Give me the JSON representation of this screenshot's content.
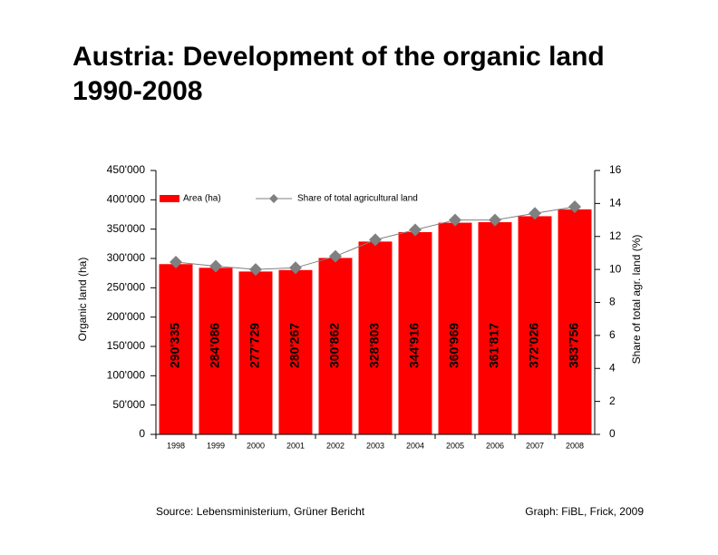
{
  "chart_data": {
    "type": "bar",
    "title": "Austria: Development of the organic land 1990-2008",
    "y_label": "Organic land (ha)",
    "y2_label": "Share of total agr. land (%)",
    "source": "Source: Lebensministerium, Grüner Bericht",
    "credit": "Graph:  FiBL, Frick, 2009",
    "categories": [
      "1998",
      "1999",
      "2000",
      "2001",
      "2002",
      "2003",
      "2004",
      "2005",
      "2006",
      "2007",
      "2008"
    ],
    "series": [
      {
        "name": "Area (ha)",
        "color": "#ff0000",
        "values": [
          290335,
          284086,
          277729,
          280267,
          300862,
          328803,
          344916,
          360969,
          361817,
          372026,
          383756
        ],
        "value_labels": [
          "290'335",
          "284'086",
          "277'729",
          "280'267",
          "300'862",
          "328'803",
          "344'916",
          "360'969",
          "361'817",
          "372'026",
          "383'756"
        ]
      },
      {
        "name": "Share of total agricultural land",
        "color": "#808080",
        "axis": "y2",
        "values": [
          10.45,
          10.2,
          10.0,
          10.1,
          10.8,
          11.8,
          12.4,
          13.0,
          13.0,
          13.4,
          13.8
        ]
      }
    ],
    "ylim": [
      0,
      450000
    ],
    "yticks": [
      0,
      {
        "value": 50000,
        "label": "50'000"
      },
      {
        "value": 100000,
        "label": "100'000"
      },
      {
        "value": 150000,
        "label": "150'000"
      },
      {
        "value": 200000,
        "label": "200'000"
      },
      {
        "value": 250000,
        "label": "250'000"
      },
      {
        "value": 300000,
        "label": "300'000"
      },
      {
        "value": 350000,
        "label": "350'000"
      },
      {
        "value": 400000,
        "label": "400'000"
      },
      {
        "value": 450000,
        "label": "450'000"
      }
    ],
    "y2lim": [
      0,
      16
    ],
    "y2ticks": [
      0,
      2,
      4,
      6,
      8,
      10,
      12,
      14,
      16
    ],
    "legend": "top-left"
  }
}
